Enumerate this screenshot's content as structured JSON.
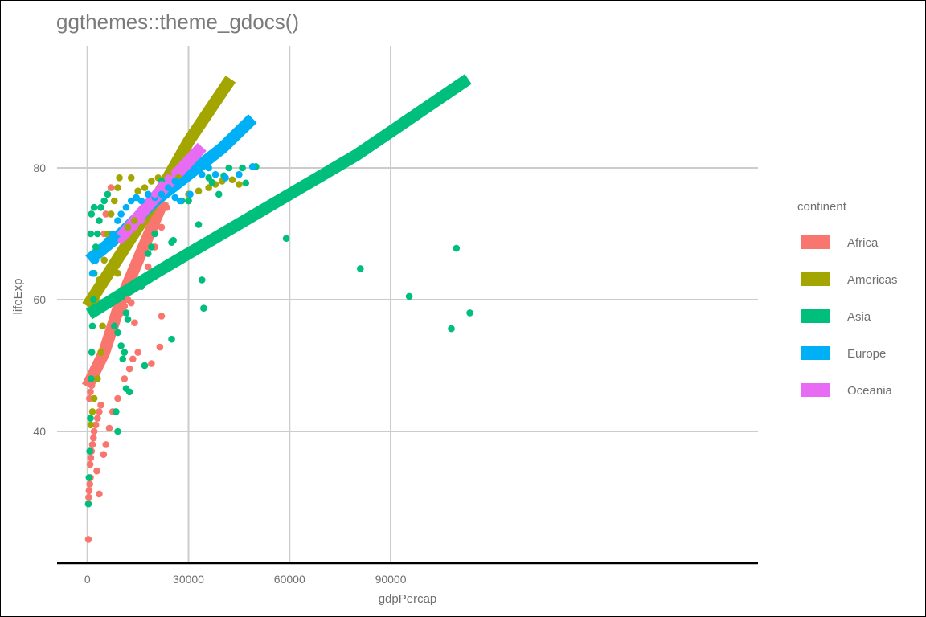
{
  "chart_data": {
    "type": "scatter",
    "title": "ggthemes::theme_gdocs()",
    "xlabel": "gdpPercap",
    "ylabel": "lifeExp",
    "xlim": [
      -9000,
      199000
    ],
    "ylim": [
      20,
      100
    ],
    "x_ticks": [
      0,
      30000,
      60000,
      90000
    ],
    "x_tick_labels": [
      "0",
      "30000",
      "60000",
      "90000"
    ],
    "y_ticks": [
      40,
      60,
      80
    ],
    "y_tick_labels": [
      "40",
      "60",
      "80"
    ],
    "grid": true,
    "legend": {
      "title": "continent",
      "position": "right"
    },
    "series": [
      {
        "name": "Africa",
        "color": "#F8766D",
        "points": [
          [
            300,
            23.6
          ],
          [
            400,
            30
          ],
          [
            500,
            31
          ],
          [
            700,
            32
          ],
          [
            900,
            33
          ],
          [
            800,
            35
          ],
          [
            1000,
            36
          ],
          [
            1200,
            37
          ],
          [
            1500,
            38
          ],
          [
            1800,
            39
          ],
          [
            2000,
            40
          ],
          [
            2500,
            41
          ],
          [
            3000,
            42
          ],
          [
            3500,
            43
          ],
          [
            4000,
            44
          ],
          [
            600,
            45
          ],
          [
            900,
            46
          ],
          [
            1300,
            47
          ],
          [
            1700,
            48
          ],
          [
            2200,
            49
          ],
          [
            2800,
            50
          ],
          [
            3400,
            51
          ],
          [
            4100,
            52
          ],
          [
            5000,
            53
          ],
          [
            6000,
            54
          ],
          [
            7000,
            55
          ],
          [
            8000,
            56
          ],
          [
            9000,
            57
          ],
          [
            10000,
            58
          ],
          [
            11000,
            59
          ],
          [
            12000,
            60
          ],
          [
            3500,
            30.5
          ],
          [
            2800,
            34
          ],
          [
            4800,
            36.5
          ],
          [
            5500,
            38
          ],
          [
            6500,
            40.5
          ],
          [
            7500,
            43
          ],
          [
            9000,
            45
          ],
          [
            11000,
            48
          ],
          [
            12500,
            49.5
          ],
          [
            13500,
            51
          ],
          [
            15000,
            52
          ],
          [
            17000,
            50
          ],
          [
            19000,
            50.3
          ],
          [
            21500,
            52.8
          ],
          [
            22000,
            57.5
          ],
          [
            14000,
            56.5
          ],
          [
            13000,
            59.5
          ],
          [
            16000,
            62
          ],
          [
            18000,
            65
          ],
          [
            20000,
            68
          ],
          [
            22000,
            71
          ],
          [
            23500,
            74
          ],
          [
            5000,
            70
          ],
          [
            5500,
            73
          ],
          [
            6000,
            76
          ],
          [
            7000,
            77
          ]
        ],
        "trend": [
          [
            0,
            46.8
          ],
          [
            5000,
            52
          ],
          [
            10000,
            60
          ],
          [
            15000,
            66
          ],
          [
            20000,
            72
          ],
          [
            22500,
            75
          ]
        ]
      },
      {
        "name": "Americas",
        "color": "#A3A500",
        "points": [
          [
            1000,
            41
          ],
          [
            1500,
            43
          ],
          [
            2000,
            45
          ],
          [
            3000,
            48
          ],
          [
            4000,
            52
          ],
          [
            4500,
            56
          ],
          [
            2500,
            60
          ],
          [
            3500,
            63
          ],
          [
            5000,
            66
          ],
          [
            6000,
            70
          ],
          [
            7000,
            73
          ],
          [
            8000,
            75
          ],
          [
            9000,
            77
          ],
          [
            9500,
            78.5
          ],
          [
            13000,
            78.5
          ],
          [
            15000,
            76.5
          ],
          [
            17000,
            77
          ],
          [
            19000,
            78
          ],
          [
            21000,
            78.5
          ],
          [
            24000,
            79
          ],
          [
            27000,
            78.5
          ],
          [
            30000,
            76
          ],
          [
            30000,
            75
          ],
          [
            33000,
            76.5
          ],
          [
            36000,
            77
          ],
          [
            38000,
            77.5
          ],
          [
            40000,
            78
          ],
          [
            43000,
            78.2
          ],
          [
            45000,
            77.5
          ],
          [
            12000,
            71
          ],
          [
            14000,
            72
          ],
          [
            11000,
            67
          ],
          [
            9000,
            64
          ]
        ],
        "trend": [
          [
            0,
            59
          ],
          [
            10000,
            67
          ],
          [
            20000,
            75
          ],
          [
            30000,
            84
          ],
          [
            42500,
            93.5
          ]
        ]
      },
      {
        "name": "Asia",
        "color": "#00BF7D",
        "points": [
          [
            300,
            29
          ],
          [
            500,
            33
          ],
          [
            700,
            37
          ],
          [
            900,
            42
          ],
          [
            1100,
            48
          ],
          [
            1300,
            52
          ],
          [
            1500,
            56
          ],
          [
            1800,
            60
          ],
          [
            2000,
            64
          ],
          [
            2500,
            68
          ],
          [
            3000,
            70
          ],
          [
            3500,
            72
          ],
          [
            4000,
            74
          ],
          [
            5000,
            75
          ],
          [
            6000,
            76
          ],
          [
            1000,
            70
          ],
          [
            1200,
            73
          ],
          [
            2000,
            74
          ],
          [
            8000,
            56
          ],
          [
            9000,
            55
          ],
          [
            10000,
            53
          ],
          [
            10500,
            51
          ],
          [
            11000,
            52
          ],
          [
            12000,
            57
          ],
          [
            11500,
            58
          ],
          [
            12500,
            46
          ],
          [
            11500,
            46.5
          ],
          [
            9000,
            40
          ],
          [
            8500,
            43
          ],
          [
            16000,
            62
          ],
          [
            17000,
            50
          ],
          [
            18000,
            67
          ],
          [
            19000,
            68
          ],
          [
            20000,
            70
          ],
          [
            22000,
            78
          ],
          [
            25000,
            54
          ],
          [
            25000,
            68.7
          ],
          [
            25500,
            69
          ],
          [
            28000,
            75
          ],
          [
            30000,
            75
          ],
          [
            33000,
            71.4
          ],
          [
            34000,
            63
          ],
          [
            34500,
            58.7
          ],
          [
            36000,
            78.5
          ],
          [
            37000,
            77.8
          ],
          [
            39000,
            76
          ],
          [
            40500,
            78.8
          ],
          [
            42000,
            80
          ],
          [
            46000,
            80
          ],
          [
            47000,
            77.7
          ],
          [
            50000,
            80.2
          ],
          [
            59000,
            69.3
          ],
          [
            81000,
            64.7
          ],
          [
            95500,
            60.5
          ],
          [
            108000,
            55.6
          ],
          [
            109500,
            67.8
          ],
          [
            113500,
            58
          ]
        ],
        "trend": [
          [
            500,
            57.8
          ],
          [
            20000,
            64
          ],
          [
            40000,
            70
          ],
          [
            60000,
            76
          ],
          [
            80000,
            82
          ],
          [
            113000,
            93.5
          ]
        ]
      },
      {
        "name": "Europe",
        "color": "#00B0F6",
        "points": [
          [
            1500,
            64
          ],
          [
            2500,
            66
          ],
          [
            3500,
            67
          ],
          [
            4500,
            68
          ],
          [
            6000,
            69
          ],
          [
            7500,
            70
          ],
          [
            9000,
            72
          ],
          [
            10000,
            73
          ],
          [
            11500,
            74
          ],
          [
            13000,
            75
          ],
          [
            14500,
            75.5
          ],
          [
            16000,
            75
          ],
          [
            18000,
            76
          ],
          [
            20000,
            75.5
          ],
          [
            22000,
            76
          ],
          [
            24000,
            77
          ],
          [
            26000,
            78
          ],
          [
            28000,
            78
          ],
          [
            30000,
            79
          ],
          [
            32000,
            79.5
          ],
          [
            34000,
            79
          ],
          [
            36000,
            80
          ],
          [
            38000,
            79
          ],
          [
            41000,
            78.5
          ],
          [
            45000,
            79
          ],
          [
            49000,
            80.2
          ],
          [
            26000,
            75.5
          ],
          [
            27500,
            75
          ],
          [
            30500,
            76
          ]
        ],
        "trend": [
          [
            500,
            66
          ],
          [
            10000,
            70
          ],
          [
            20000,
            75
          ],
          [
            30000,
            79
          ],
          [
            40000,
            83
          ],
          [
            49000,
            87.5
          ]
        ]
      },
      {
        "name": "Oceania",
        "color": "#E76BF3",
        "points": [
          [
            10000,
            69
          ],
          [
            12000,
            70
          ],
          [
            14000,
            71
          ],
          [
            16000,
            72
          ],
          [
            18000,
            74
          ],
          [
            20000,
            76
          ],
          [
            22000,
            77.5
          ],
          [
            24000,
            78.5
          ],
          [
            26000,
            79.5
          ],
          [
            28000,
            80
          ],
          [
            30000,
            81
          ]
        ],
        "trend": [
          [
            10000,
            69.5
          ],
          [
            20000,
            75.5
          ],
          [
            34000,
            83.2
          ]
        ]
      }
    ]
  }
}
